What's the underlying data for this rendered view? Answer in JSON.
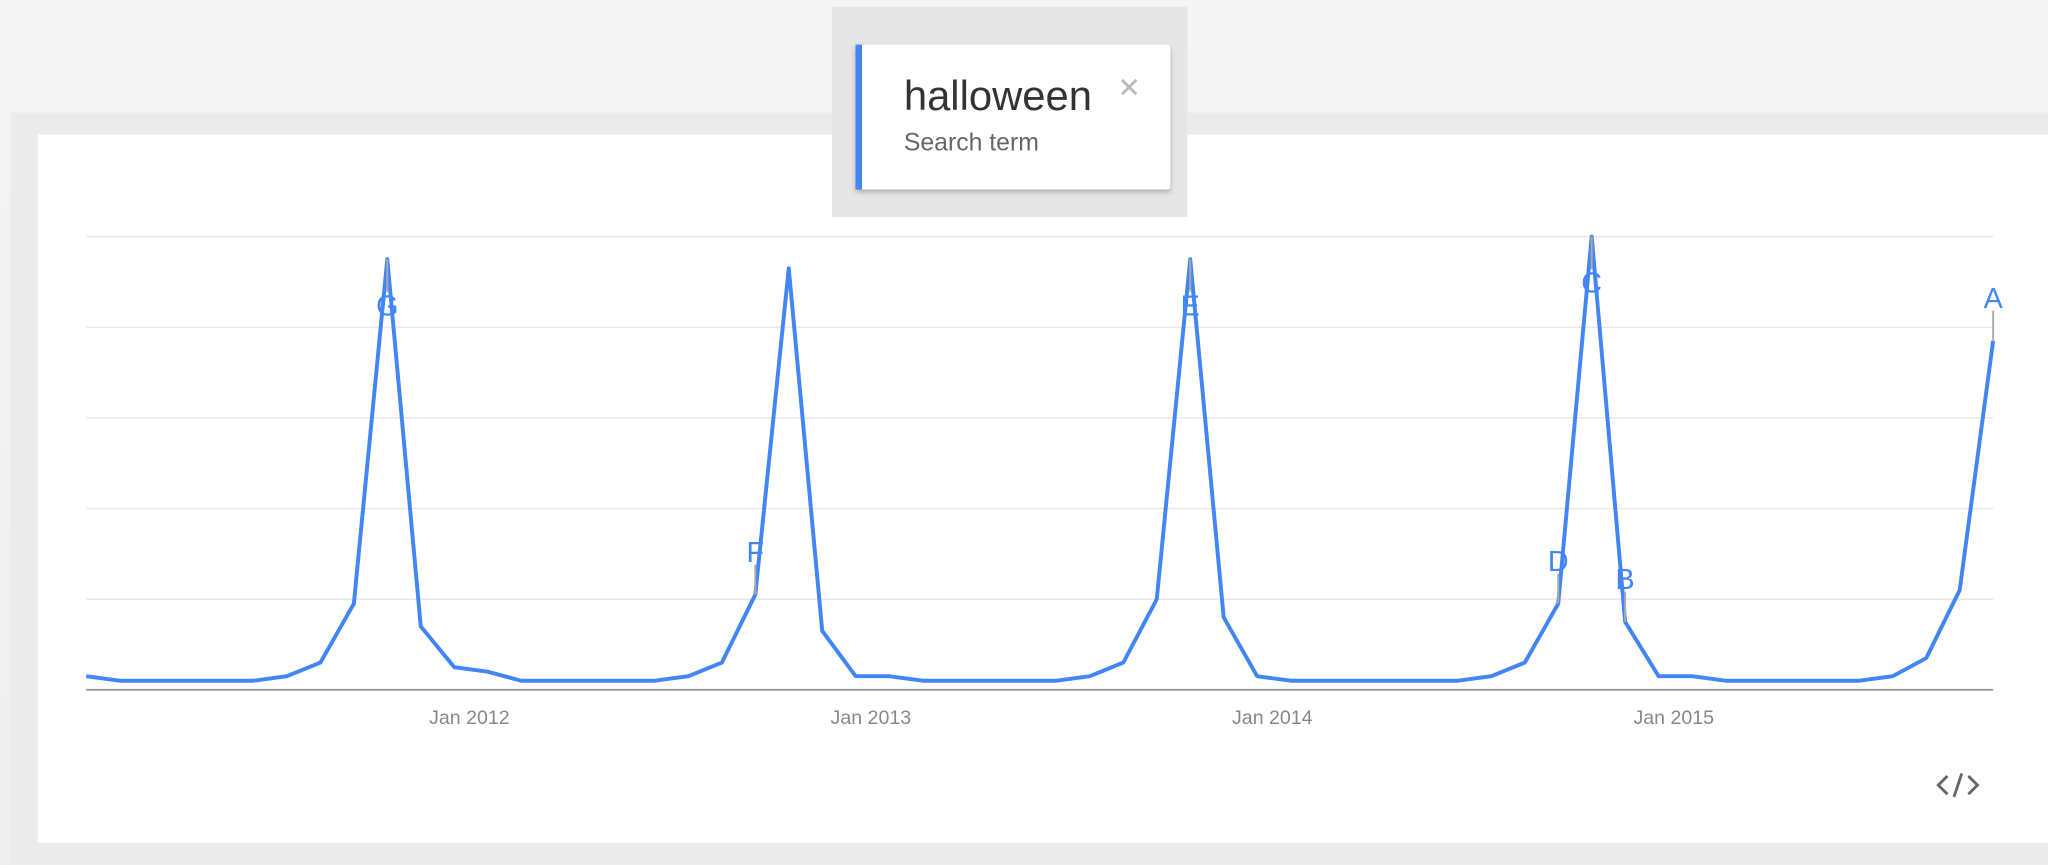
{
  "search_caption": "Search term",
  "chart_data": {
    "type": "line",
    "x": [
      "2011-01",
      "2011-02",
      "2011-03",
      "2011-04",
      "2011-05",
      "2011-06",
      "2011-07",
      "2011-08",
      "2011-09",
      "2011-10",
      "2011-11",
      "2011-12",
      "2012-01",
      "2012-02",
      "2012-03",
      "2012-04",
      "2012-05",
      "2012-06",
      "2012-07",
      "2012-08",
      "2012-09",
      "2012-10",
      "2012-11",
      "2012-12",
      "2013-01",
      "2013-02",
      "2013-03",
      "2013-04",
      "2013-05",
      "2013-06",
      "2013-07",
      "2013-08",
      "2013-09",
      "2013-10",
      "2013-11",
      "2013-12",
      "2014-01",
      "2014-02",
      "2014-03",
      "2014-04",
      "2014-05",
      "2014-06",
      "2014-07",
      "2014-08",
      "2014-09",
      "2014-10",
      "2014-11",
      "2014-12",
      "2015-01",
      "2015-02",
      "2015-03",
      "2015-04",
      "2015-05",
      "2015-06",
      "2015-07",
      "2015-08",
      "2015-09",
      "2015-10"
    ],
    "series": [
      {
        "name": "halloween",
        "color": "#4285f4",
        "values": [
          3,
          2,
          2,
          2,
          2,
          2,
          3,
          6,
          19,
          95,
          14,
          5,
          4,
          2,
          2,
          2,
          2,
          2,
          3,
          6,
          21,
          93,
          13,
          3,
          3,
          2,
          2,
          2,
          2,
          2,
          3,
          6,
          20,
          95,
          16,
          3,
          2,
          2,
          2,
          2,
          2,
          2,
          3,
          6,
          19,
          100,
          15,
          3,
          3,
          2,
          2,
          2,
          2,
          2,
          3,
          7,
          22,
          77
        ]
      }
    ],
    "ylim": [
      0,
      100
    ],
    "yticks": [
      0,
      20,
      40,
      60,
      80,
      100
    ],
    "grid": true,
    "xticks": [
      {
        "value": "2012-01",
        "label": "Jan 2012"
      },
      {
        "value": "2013-01",
        "label": "Jan 2013"
      },
      {
        "value": "2014-01",
        "label": "Jan 2014"
      },
      {
        "value": "2015-01",
        "label": "Jan 2015"
      }
    ],
    "annotations": [
      {
        "label": "G",
        "x": "2011-10"
      },
      {
        "label": "F",
        "x": "2012-09"
      },
      {
        "label": "E",
        "x": "2013-10"
      },
      {
        "label": "D",
        "x": "2014-09"
      },
      {
        "label": "C",
        "x": "2014-10"
      },
      {
        "label": "B",
        "x": "2014-11"
      },
      {
        "label": "A",
        "x": "2015-10"
      }
    ]
  }
}
